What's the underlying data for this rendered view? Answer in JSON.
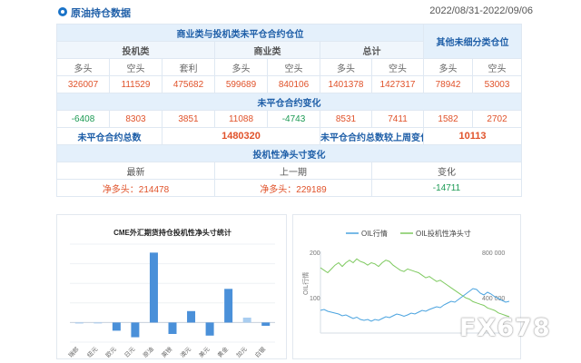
{
  "header": {
    "title": "原油持仓数据",
    "date_range": "2022/08/31-2022/09/06"
  },
  "table": {
    "group_title": "商业类与投机类未平仓合约仓位",
    "other_title": "其他未细分类仓位",
    "categories": {
      "speculative": "投机类",
      "commercial": "商业类",
      "total": "总计"
    },
    "cols": {
      "long": "多头",
      "short": "空头",
      "spread": "套利"
    },
    "positions": {
      "spec_long": "326007",
      "spec_short": "111529",
      "spec_spread": "475682",
      "comm_long": "599689",
      "comm_short": "840106",
      "total_long": "1401378",
      "total_short": "1427317",
      "other_long": "78942",
      "other_short": "53003"
    },
    "change_title": "未平仓合约变化",
    "changes": {
      "spec_long": "-6408",
      "spec_short": "8303",
      "spec_spread": "3851",
      "comm_long": "11088",
      "comm_short": "-4743",
      "total_long": "8531",
      "total_short": "7411",
      "other_long": "1582",
      "other_short": "2702"
    },
    "oi_total_label": "未平仓合约总数",
    "oi_total_value": "1480320",
    "oi_change_label": "未平仓合约总数较上周变化",
    "oi_change_value": "10113",
    "net_title": "投机性净头寸变化",
    "net_cols": {
      "latest": "最新",
      "previous": "上一期",
      "change": "变化"
    },
    "net_values": {
      "latest": "净多头：214478",
      "previous": "净多头：229189",
      "change": "-14711"
    }
  },
  "bar_chart": {
    "title": "CME外汇期货持仓投机性净头寸统计",
    "chart_data": {
      "type": "bar",
      "title": "CME外汇期货持仓投机性净头寸统计",
      "categories": [
        "瑞郎",
        "纽元",
        "欧元",
        "日元",
        "原油",
        "英镑",
        "澳元",
        "美元",
        "黄金",
        "加元",
        "白银"
      ],
      "values": [
        -3,
        0,
        -25,
        -45,
        214,
        -35,
        35,
        -40,
        103,
        15,
        -10
      ],
      "ylim": [
        -60,
        240
      ],
      "colors": {
        "bar": "#4a90d9",
        "bar_light": "#a9cdf0"
      }
    }
  },
  "line_chart": {
    "chart_data": {
      "type": "line",
      "legend": [
        "OIL行情",
        "OIL投机性净头寸"
      ],
      "y_left_ticks": [
        "200",
        "100"
      ],
      "y_right_ticks": [
        "800 000",
        "400 000"
      ],
      "ylabel_left": "OIL行情",
      "colors": {
        "price": "#4aa3df",
        "position": "#7dc95e"
      },
      "series": [
        {
          "name": "OIL行情",
          "values": [
            70,
            72,
            68,
            66,
            64,
            62,
            58,
            60,
            56,
            52,
            55,
            50,
            48,
            50,
            46,
            50,
            48,
            52,
            56,
            54,
            58,
            62,
            60,
            57,
            60,
            64,
            62,
            66,
            70,
            68,
            72,
            75,
            78,
            76,
            82,
            86,
            90,
            88,
            94,
            100,
            106,
            112,
            118,
            116,
            108,
            104,
            110,
            106,
            100,
            96,
            92,
            88,
            90
          ]
        },
        {
          "name": "OIL投机性净头寸",
          "values": [
            720,
            700,
            680,
            710,
            740,
            760,
            730,
            760,
            780,
            760,
            790,
            770,
            760,
            740,
            760,
            750,
            730,
            760,
            780,
            770,
            740,
            720,
            700,
            690,
            710,
            700,
            690,
            680,
            660,
            640,
            650,
            630,
            610,
            620,
            600,
            580,
            560,
            540,
            520,
            500,
            480,
            470,
            450,
            440,
            430,
            420,
            400,
            390,
            380,
            360,
            350,
            340,
            330
          ]
        }
      ]
    }
  },
  "watermark": "FX678"
}
